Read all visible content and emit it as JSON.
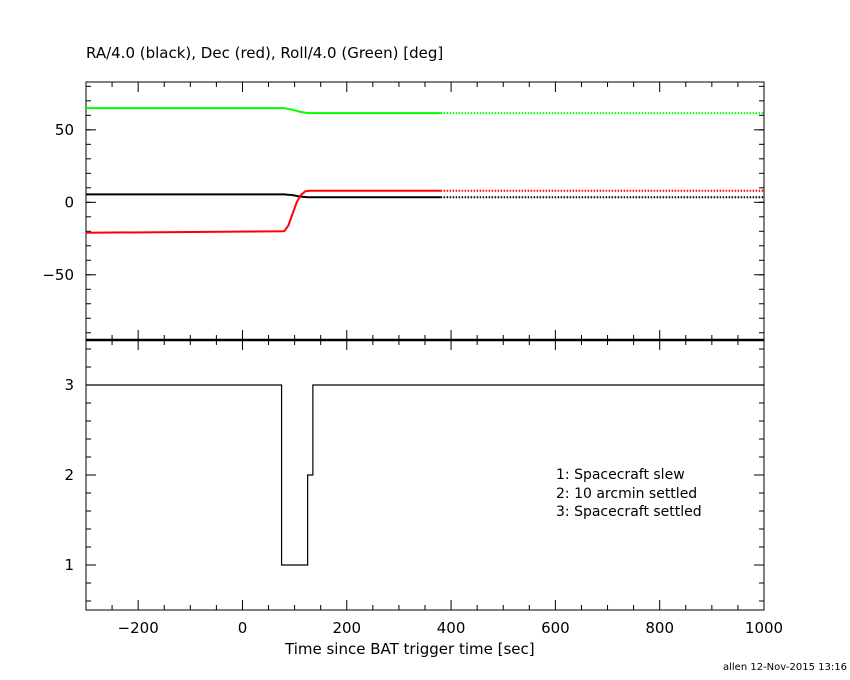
{
  "chart_data": [
    {
      "type": "line",
      "title": "RA/4.0 (black), Dec (red), Roll/4.0 (Green) [deg]",
      "xlim": [
        -300,
        1000
      ],
      "ylim": [
        -95,
        83
      ],
      "yticks_major": [
        -50,
        0,
        50
      ],
      "yticks_minor_step": 10,
      "ytick_labels": [
        "−50",
        "0",
        "50"
      ],
      "grid": false,
      "dotted_after_x": 380,
      "series": [
        {
          "color": "#000000",
          "x": [
            -300,
            80,
            95,
            110,
            125,
            380,
            1000
          ],
          "y": [
            5.5,
            5.5,
            5.0,
            4.0,
            3.5,
            3.5,
            3.5
          ]
        },
        {
          "color": "#ff0000",
          "x": [
            -300,
            80,
            88,
            96,
            104,
            112,
            120,
            128,
            380,
            1000
          ],
          "y": [
            -21,
            -20,
            -16,
            -8,
            0,
            5,
            7.5,
            8,
            8,
            8
          ]
        },
        {
          "color": "#00ff00",
          "x": [
            -300,
            80,
            95,
            110,
            125,
            380,
            1000
          ],
          "y": [
            65,
            65,
            64,
            62.5,
            61.5,
            61.5,
            61.5
          ]
        }
      ]
    },
    {
      "type": "line",
      "xlabel": "Time since BAT trigger time [sec]",
      "xlim": [
        -300,
        1000
      ],
      "ylim": [
        0.5,
        3.5
      ],
      "xticks_major": [
        -200,
        0,
        200,
        400,
        600,
        800,
        1000
      ],
      "xtick_labels": [
        "−200",
        "0",
        "200",
        "400",
        "600",
        "800",
        "1000"
      ],
      "xticks_minor_step": 50,
      "yticks_major": [
        1,
        2,
        3
      ],
      "ytick_labels": [
        "1",
        "2",
        "3"
      ],
      "yticks_minor_step": 0.2,
      "grid": false,
      "legend_position": "right",
      "legend": [
        "1: Spacecraft slew",
        "2: 10 arcmin settled",
        "3: Spacecraft settled"
      ],
      "series": [
        {
          "color": "#000000",
          "step": true,
          "x": [
            -300,
            75,
            75,
            125,
            125,
            135,
            135,
            1000
          ],
          "y": [
            3,
            3,
            1,
            1,
            2,
            2,
            3,
            3
          ]
        }
      ]
    }
  ],
  "footer": "allen 12-Nov-2015 13:16"
}
